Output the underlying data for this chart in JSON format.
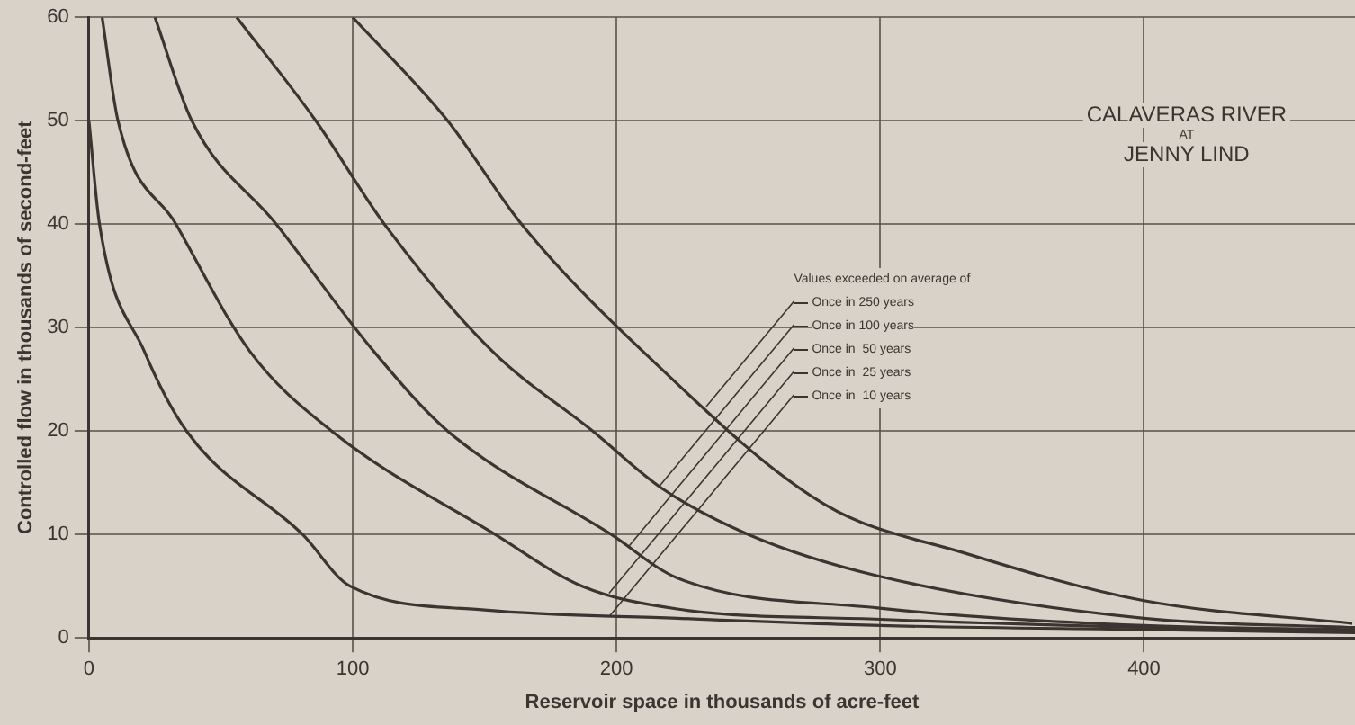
{
  "chart_data": {
    "type": "line",
    "title": "CALAVERAS RIVER\nAT\nJENNY LIND",
    "xlabel": "Reservoir space in thousands of acre-feet",
    "ylabel": "Controlled flow in thousands of second-feet",
    "legend_title": "Values exceeded on average of",
    "legend": "center",
    "grid": true,
    "marker": "none",
    "line_style": "solid",
    "xlim": [
      0,
      480
    ],
    "xticks": [
      0,
      100,
      200,
      300,
      400
    ],
    "ylim": [
      0,
      60
    ],
    "yticks": [
      0,
      10,
      20,
      30,
      40,
      50,
      60
    ],
    "series": [
      {
        "name": "Once in 250 years",
        "color": "#3a3530",
        "x": [
          100,
          136,
          164,
          210,
          279,
          332,
          400,
          479
        ],
        "values": [
          60,
          50,
          40,
          27.7,
          12.9,
          8.2,
          3.6,
          1.4
        ]
      },
      {
        "name": "Once in 100 years",
        "color": "#3a3530",
        "x": [
          56,
          86,
          112,
          153,
          191,
          217,
          250,
          299,
          400,
          480
        ],
        "values": [
          60,
          50,
          40,
          27.7,
          20,
          14.5,
          10,
          6,
          1.9,
          1.0
        ]
      },
      {
        "name": "Once in  50 years",
        "color": "#3a3530",
        "x": [
          25,
          39,
          71,
          108,
          136,
          198,
          223,
          299,
          400,
          480
        ],
        "values": [
          60,
          50,
          40,
          27.7,
          20,
          10,
          5.8,
          2.9,
          1.2,
          0.8
        ]
      },
      {
        "name": "Once in  25 years",
        "color": "#3a3530",
        "x": [
          5,
          11,
          33,
          61,
          92,
          154,
          187,
          223,
          300,
          400,
          480
        ],
        "values": [
          60,
          50,
          40,
          27.7,
          20,
          10,
          5,
          2.8,
          1.8,
          1.0,
          0.6
        ]
      },
      {
        "name": "Once in  10 years",
        "color": "#3a3530",
        "x": [
          0,
          4,
          21,
          37,
          81,
          99,
          150,
          223,
          300,
          400,
          480
        ],
        "values": [
          50,
          40,
          27.7,
          20,
          10,
          5,
          2.7,
          1.9,
          1.2,
          0.8,
          0.5
        ]
      }
    ]
  }
}
